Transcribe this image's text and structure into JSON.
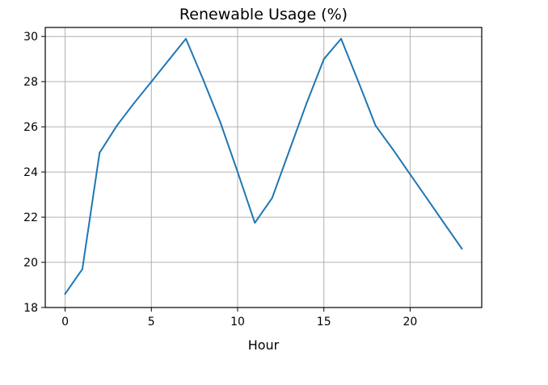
{
  "chart_data": {
    "type": "line",
    "title": "Renewable Usage (%)",
    "xlabel": "Hour",
    "ylabel": "",
    "xlim": [
      -1.15,
      24.15
    ],
    "ylim": [
      18.0,
      30.4
    ],
    "xticks": [
      0,
      5,
      10,
      15,
      20
    ],
    "yticks": [
      18,
      20,
      22,
      24,
      26,
      28,
      30
    ],
    "grid": true,
    "legend": "none",
    "series": [
      {
        "color": "#1f77b4",
        "x": [
          0,
          1,
          2,
          3,
          4,
          5,
          6,
          7,
          8,
          9,
          10,
          11,
          12,
          13,
          14,
          15,
          16,
          17,
          18,
          19,
          20,
          21,
          22,
          23
        ],
        "y": [
          18.6,
          19.7,
          24.85,
          26.05,
          27.05,
          28.0,
          28.95,
          29.9,
          28.1,
          26.2,
          24.0,
          21.75,
          22.85,
          24.95,
          27.05,
          29.0,
          29.9,
          28.0,
          26.05,
          25.0,
          23.9,
          22.8,
          21.7,
          20.6
        ]
      }
    ]
  }
}
